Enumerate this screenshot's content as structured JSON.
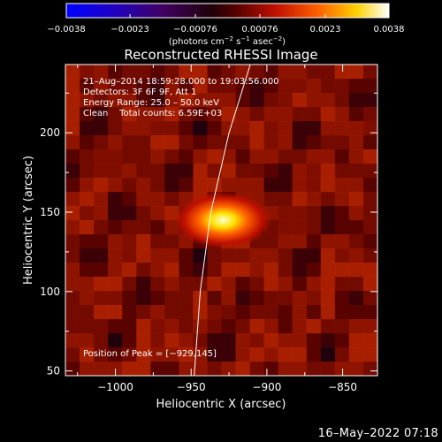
{
  "chart_data": {
    "type": "heatmap",
    "title": "Reconstructed RHESSI Image",
    "xlabel": "Heliocentric X (arcsec)",
    "ylabel": "Heliocentric Y (arcsec)",
    "xlim": [
      -1033,
      -827
    ],
    "ylim": [
      47,
      243
    ],
    "xticks": [
      -1000,
      -950,
      -900,
      -850
    ],
    "xtick_labels": [
      "−1000",
      "−950",
      "−900",
      "−850"
    ],
    "yticks": [
      50,
      100,
      150,
      200
    ],
    "ytick_labels": [
      "50",
      "100",
      "150",
      "200"
    ],
    "colorbar": {
      "min": -0.0038,
      "max": 0.0038,
      "ticks": [
        -0.0038,
        -0.0023,
        -0.00076,
        0.00076,
        0.0023,
        0.0038
      ],
      "tick_labels": [
        "−0.0038",
        "−0.0023",
        "−0.00076",
        "0.00076",
        "0.0023",
        "0.0038"
      ],
      "unit_prefix": "(photons cm",
      "unit_exp1": "−2",
      "unit_mid": " s",
      "unit_exp2": "−1",
      "unit_mid2": " asec",
      "unit_exp3": "−2",
      "unit_suffix": ")",
      "colormap": "hot-blue"
    },
    "info": {
      "time": "21–Aug–2014 18:59:28.000 to 19:03:56.000",
      "detectors": "Detectors: 3F 6F 9F, Att 1",
      "energy": "Energy Range: 25.0 – 50.0 keV",
      "method": "Clean    Total counts: 6.59E+03"
    },
    "peak": {
      "label": "Position of Peak = [−929,145]",
      "x": -929,
      "y": 145
    },
    "limb": {
      "points": [
        [
          -948,
          47
        ],
        [
          -944,
          100
        ],
        [
          -937,
          150
        ],
        [
          -925,
          200
        ],
        [
          -911,
          243
        ]
      ]
    },
    "grid": false
  },
  "footer": {
    "timestamp": "16–May–2022 07:18"
  }
}
